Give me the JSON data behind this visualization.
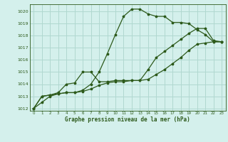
{
  "title": "Graphe pression niveau de la mer (hPa)",
  "bg_color": "#d4f0ec",
  "grid_color": "#b0d8d0",
  "line_color": "#2d5a1b",
  "xlim": [
    -0.5,
    23.5
  ],
  "ylim": [
    1011.8,
    1020.6
  ],
  "yticks": [
    1012,
    1013,
    1014,
    1015,
    1016,
    1017,
    1018,
    1019,
    1020
  ],
  "xticks": [
    0,
    1,
    2,
    3,
    4,
    5,
    6,
    7,
    8,
    9,
    10,
    11,
    12,
    13,
    14,
    15,
    16,
    17,
    18,
    19,
    20,
    21,
    22,
    23
  ],
  "line1_x": [
    0,
    1,
    2,
    3,
    4,
    5,
    6,
    7,
    8,
    9,
    10,
    11,
    12,
    13,
    14,
    15,
    16,
    17,
    18,
    19,
    20,
    21,
    22,
    23
  ],
  "line1_y": [
    1012.0,
    1012.5,
    1013.0,
    1013.2,
    1013.3,
    1013.3,
    1013.5,
    1014.0,
    1015.0,
    1016.5,
    1018.1,
    1019.6,
    1020.2,
    1020.2,
    1019.8,
    1019.6,
    1019.6,
    1019.1,
    1019.1,
    1019.0,
    1018.5,
    1018.1,
    1017.5,
    1017.5
  ],
  "line2_x": [
    0,
    1,
    2,
    3,
    4,
    5,
    6,
    7,
    8,
    9,
    10,
    11,
    12,
    13,
    14,
    15,
    16,
    17,
    18,
    19,
    20,
    21,
    22,
    23
  ],
  "line2_y": [
    1012.0,
    1013.0,
    1013.1,
    1013.3,
    1014.0,
    1014.1,
    1015.0,
    1015.0,
    1014.2,
    1014.2,
    1014.3,
    1014.3,
    1014.3,
    1014.3,
    1015.2,
    1016.2,
    1016.7,
    1017.2,
    1017.7,
    1018.2,
    1018.6,
    1018.6,
    1017.6,
    1017.5
  ],
  "line3_x": [
    0,
    1,
    2,
    3,
    4,
    5,
    6,
    7,
    8,
    9,
    10,
    11,
    12,
    13,
    14,
    15,
    16,
    17,
    18,
    19,
    20,
    21,
    22,
    23
  ],
  "line3_y": [
    1012.0,
    1013.0,
    1013.1,
    1013.2,
    1013.3,
    1013.3,
    1013.4,
    1013.6,
    1013.9,
    1014.1,
    1014.2,
    1014.2,
    1014.3,
    1014.3,
    1014.4,
    1014.8,
    1015.2,
    1015.7,
    1016.2,
    1016.8,
    1017.3,
    1017.4,
    1017.5,
    1017.5
  ]
}
